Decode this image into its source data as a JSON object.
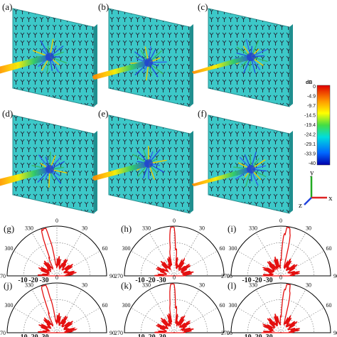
{
  "panels": {
    "labels": [
      "(a)",
      "(b)",
      "(c)",
      "(d)",
      "(e)",
      "(f)",
      "(g)",
      "(h)",
      "(i)",
      "(j)",
      "(k)",
      "(l)"
    ]
  },
  "colorbar": {
    "unit": "dB",
    "ticks": [
      "0",
      "-4.9",
      "-9.7",
      "-14.5",
      "-19.4",
      "-24.2",
      "-29.1",
      "-33.9",
      "-40"
    ]
  },
  "axes": {
    "x": "x",
    "y": "y",
    "z": "z"
  },
  "polar": {
    "angle_labels": [
      "0",
      "30",
      "60",
      "90",
      "270",
      "300",
      "330"
    ],
    "radial_labels": [
      "-10",
      "-20",
      "-30"
    ]
  }
}
